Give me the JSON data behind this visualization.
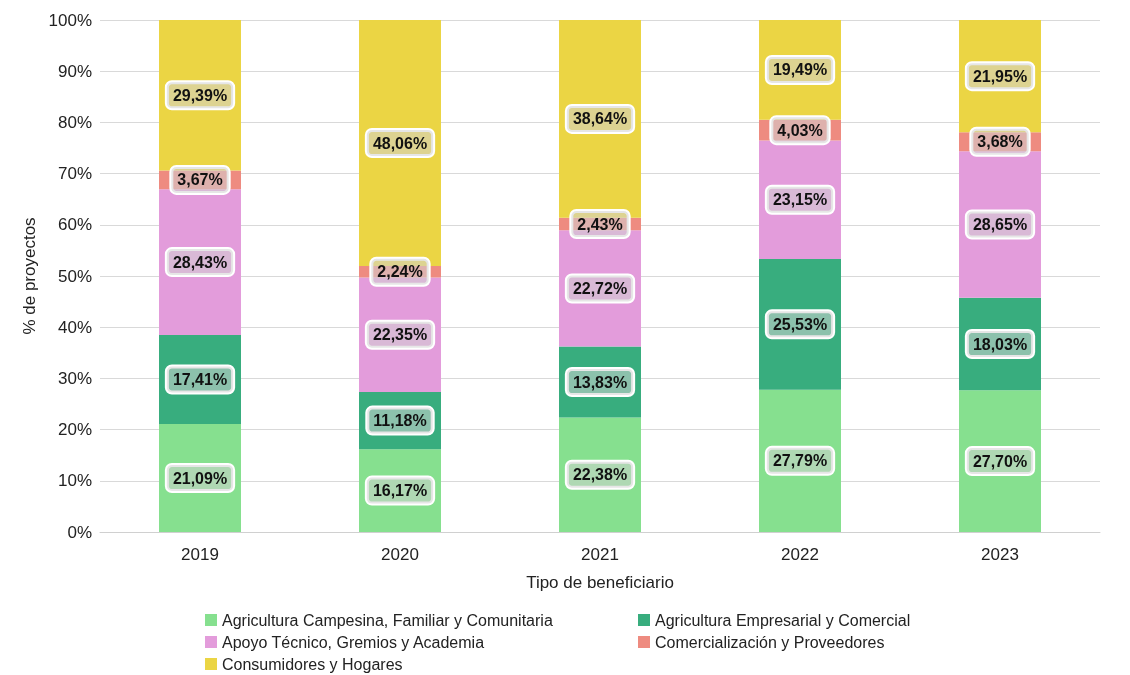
{
  "chart_data": {
    "type": "bar",
    "stacked": true,
    "xlabel": "Tipo de beneficiario",
    "ylabel": "% de proyectos",
    "categories": [
      "2019",
      "2020",
      "2021",
      "2022",
      "2023"
    ],
    "series": [
      {
        "name": "Agricultura Campesina, Familiar y Comunitaria",
        "color": "#86e08f",
        "values": [
          21.09,
          16.17,
          22.38,
          27.79,
          27.7
        ],
        "value_labels": [
          "21,09%",
          "16,17%",
          "22,38%",
          "27,79%",
          "27,70%"
        ]
      },
      {
        "name": "Agricultura Empresarial y Comercial",
        "color": "#38ad7e",
        "values": [
          17.41,
          11.18,
          13.83,
          25.53,
          18.03
        ],
        "value_labels": [
          "17,41%",
          "11,18%",
          "13,83%",
          "25,53%",
          "18,03%"
        ]
      },
      {
        "name": "Apoyo Técnico, Gremios y Academia",
        "color": "#e39cdb",
        "values": [
          28.43,
          22.35,
          22.72,
          23.15,
          28.65
        ],
        "value_labels": [
          "28,43%",
          "22,35%",
          "22,72%",
          "23,15%",
          "28,65%"
        ]
      },
      {
        "name": "Comercialización y Proveedores",
        "color": "#ee8b80",
        "values": [
          3.67,
          2.24,
          2.43,
          4.03,
          3.68
        ],
        "value_labels": [
          "3,67%",
          "2,24%",
          "2,43%",
          "4,03%",
          "3,68%"
        ]
      },
      {
        "name": "Consumidores y Hogares",
        "color": "#ebd544",
        "values": [
          29.39,
          48.06,
          38.64,
          19.49,
          21.95
        ],
        "value_labels": [
          "29,39%",
          "48,06%",
          "38,64%",
          "19,49%",
          "21,95%"
        ]
      }
    ],
    "ylim": [
      0,
      100
    ],
    "yticks": [
      {
        "value": 0,
        "label": "0%"
      },
      {
        "value": 10,
        "label": "10%"
      },
      {
        "value": 20,
        "label": "20%"
      },
      {
        "value": 30,
        "label": "30%"
      },
      {
        "value": 40,
        "label": "40%"
      },
      {
        "value": 50,
        "label": "50%"
      },
      {
        "value": 60,
        "label": "60%"
      },
      {
        "value": 70,
        "label": "70%"
      },
      {
        "value": 80,
        "label": "80%"
      },
      {
        "value": 90,
        "label": "90%"
      },
      {
        "value": 100,
        "label": "100%"
      }
    ],
    "grid": "y",
    "legend": "bottom"
  }
}
